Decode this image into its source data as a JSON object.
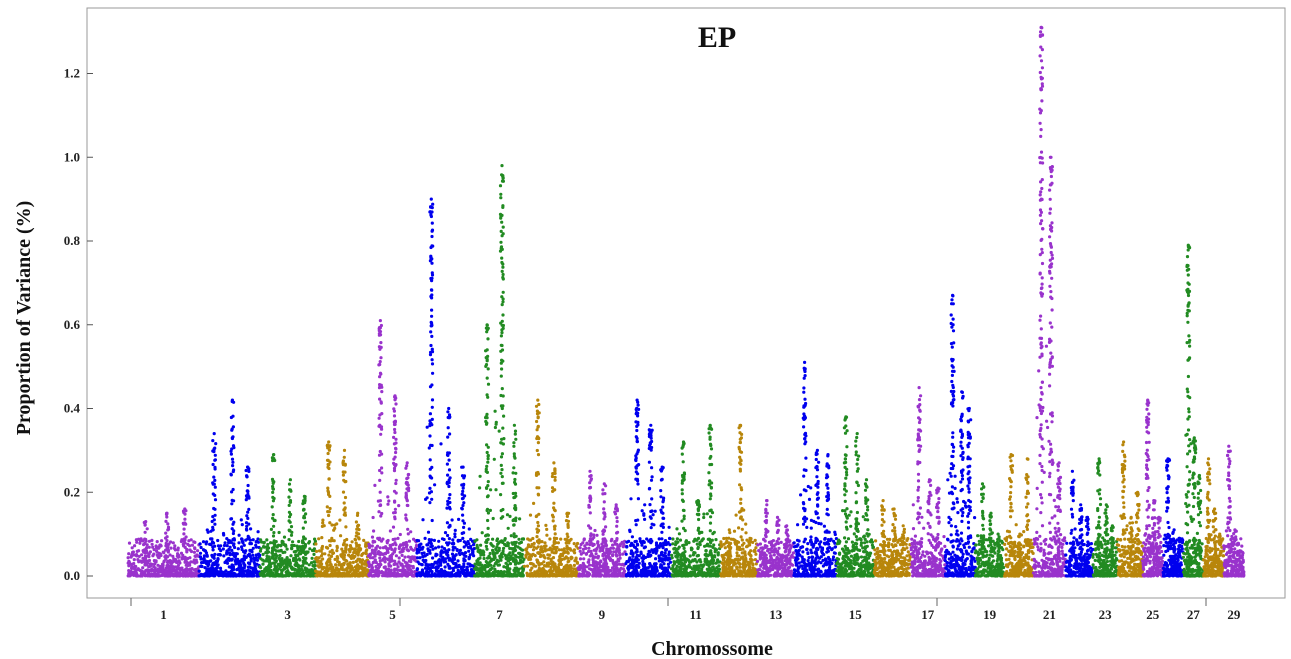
{
  "chart_data": {
    "type": "scatter",
    "title": "EP",
    "xlabel": "Chromossome",
    "ylabel": "Proportion of Variance (%)",
    "ylim": [
      0,
      1.32
    ],
    "yticks": [
      "0.0",
      "0.2",
      "0.4",
      "0.6",
      "0.8",
      "1.0",
      "1.2"
    ],
    "xtick_labels": [
      "1",
      "3",
      "5",
      "7",
      "9",
      "11",
      "13",
      "15",
      "17",
      "19",
      "21",
      "23",
      "25",
      "27",
      "29"
    ],
    "grid": false,
    "legend": "none",
    "palette": [
      "#9933cc",
      "#0000ee",
      "#228b22",
      "#b8860b"
    ],
    "chromosomes": [
      {
        "chr": 1,
        "peaks": [
          0.13,
          0.15,
          0.16
        ]
      },
      {
        "chr": 2,
        "peaks": [
          0.34,
          0.42,
          0.26
        ]
      },
      {
        "chr": 3,
        "peaks": [
          0.29,
          0.23,
          0.19
        ]
      },
      {
        "chr": 4,
        "peaks": [
          0.32,
          0.3,
          0.15
        ]
      },
      {
        "chr": 5,
        "peaks": [
          0.61,
          0.43,
          0.27
        ]
      },
      {
        "chr": 6,
        "peaks": [
          0.9,
          0.4,
          0.26
        ]
      },
      {
        "chr": 7,
        "peaks": [
          0.6,
          0.98,
          0.36
        ]
      },
      {
        "chr": 8,
        "peaks": [
          0.42,
          0.27,
          0.15
        ]
      },
      {
        "chr": 9,
        "peaks": [
          0.25,
          0.22,
          0.17
        ]
      },
      {
        "chr": 10,
        "peaks": [
          0.42,
          0.36,
          0.26
        ]
      },
      {
        "chr": 11,
        "peaks": [
          0.32,
          0.18,
          0.36
        ]
      },
      {
        "chr": 12,
        "peaks": [
          0.11,
          0.36,
          0.09
        ]
      },
      {
        "chr": 13,
        "peaks": [
          0.18,
          0.14,
          0.12
        ]
      },
      {
        "chr": 14,
        "peaks": [
          0.51,
          0.3,
          0.29
        ]
      },
      {
        "chr": 15,
        "peaks": [
          0.38,
          0.34,
          0.23
        ]
      },
      {
        "chr": 16,
        "peaks": [
          0.18,
          0.16,
          0.12
        ]
      },
      {
        "chr": 17,
        "peaks": [
          0.45,
          0.23,
          0.21
        ]
      },
      {
        "chr": 18,
        "peaks": [
          0.67,
          0.44,
          0.4
        ]
      },
      {
        "chr": 19,
        "peaks": [
          0.22,
          0.15,
          0.1
        ]
      },
      {
        "chr": 20,
        "peaks": [
          0.29,
          0.1,
          0.28
        ]
      },
      {
        "chr": 21,
        "peaks": [
          1.31,
          1.0,
          0.27
        ]
      },
      {
        "chr": 22,
        "peaks": [
          0.25,
          0.17,
          0.14
        ]
      },
      {
        "chr": 23,
        "peaks": [
          0.28,
          0.17,
          0.12
        ]
      },
      {
        "chr": 24,
        "peaks": [
          0.32,
          0.14,
          0.2
        ]
      },
      {
        "chr": 25,
        "peaks": [
          0.42,
          0.18,
          0.14
        ]
      },
      {
        "chr": 26,
        "peaks": [
          0.28,
          0.11,
          0.09
        ]
      },
      {
        "chr": 27,
        "peaks": [
          0.79,
          0.33,
          0.24
        ]
      },
      {
        "chr": 28,
        "peaks": [
          0.28,
          0.16,
          0.1
        ]
      },
      {
        "chr": 29,
        "peaks": [
          0.31,
          0.11,
          0.06
        ]
      }
    ]
  }
}
